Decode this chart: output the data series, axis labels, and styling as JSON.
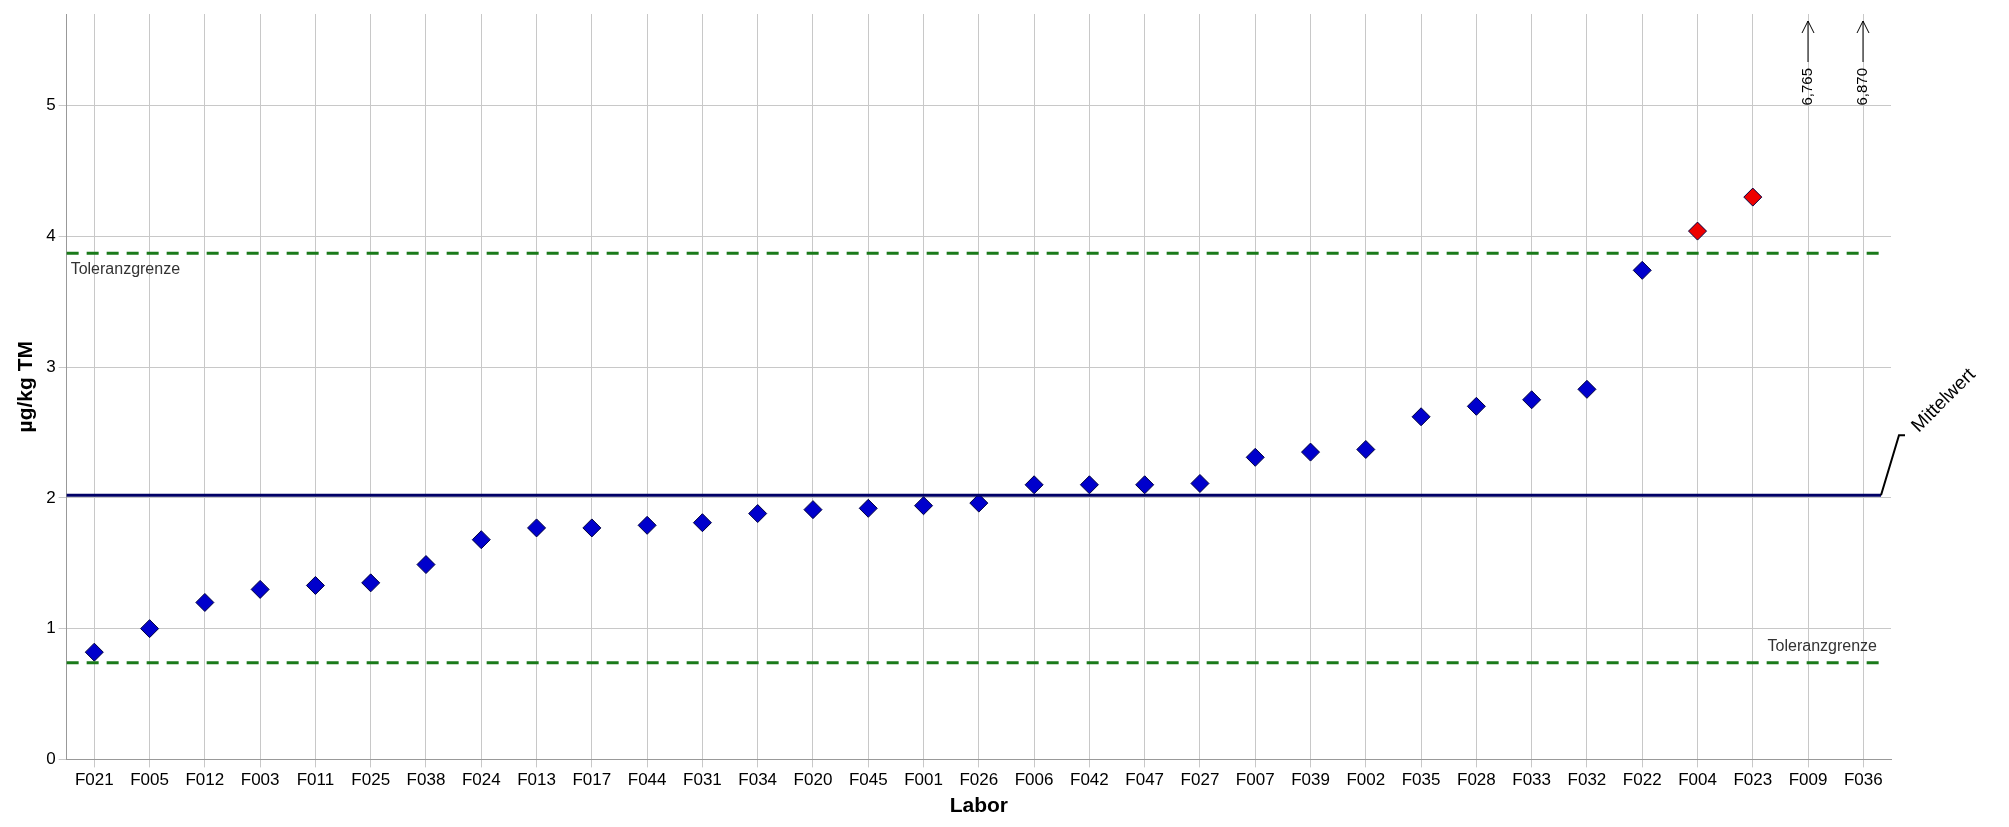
{
  "chart_data": {
    "type": "scatter",
    "xlabel": "Labor",
    "ylabel": "µg/kg TM",
    "categories": [
      "F021",
      "F005",
      "F012",
      "F003",
      "F011",
      "F025",
      "F038",
      "F024",
      "F013",
      "F017",
      "F044",
      "F031",
      "F034",
      "F020",
      "F045",
      "F001",
      "F026",
      "F006",
      "F042",
      "F047",
      "F027",
      "F007",
      "F039",
      "F002",
      "F035",
      "F028",
      "F033",
      "F032",
      "F022",
      "F004",
      "F023",
      "F009",
      "F036"
    ],
    "series": [
      {
        "colors": [
          "#0000cc",
          "#0000cc",
          "#0000cc",
          "#0000cc",
          "#0000cc",
          "#0000cc",
          "#0000cc",
          "#0000cc",
          "#0000cc",
          "#0000cc",
          "#0000cc",
          "#0000cc",
          "#0000cc",
          "#0000cc",
          "#0000cc",
          "#0000cc",
          "#0000cc",
          "#0000cc",
          "#0000cc",
          "#0000cc",
          "#0000cc",
          "#0000cc",
          "#0000cc",
          "#0000cc",
          "#0000cc",
          "#0000cc",
          "#0000cc",
          "#0000cc",
          "#0000cc",
          "#ee0000",
          "#ee0000",
          "#0000cc",
          "#0000cc"
        ],
        "values": [
          0.82,
          1.0,
          1.2,
          1.3,
          1.33,
          1.35,
          1.49,
          1.68,
          1.77,
          1.77,
          1.79,
          1.81,
          1.88,
          1.91,
          1.92,
          1.94,
          1.96,
          2.1,
          2.1,
          2.1,
          2.11,
          2.31,
          2.35,
          2.37,
          2.62,
          2.7,
          2.75,
          2.83,
          3.74,
          4.04,
          4.3,
          null,
          null
        ]
      }
    ],
    "ylim": [
      0,
      5.7
    ],
    "yticks": [
      0,
      1,
      2,
      3,
      4,
      5
    ],
    "grid": true,
    "legend": false,
    "marker": "diamond",
    "ref_lines": [
      {
        "axis": "y",
        "value": 3.87,
        "label": "Toleranzgrenze",
        "color": "#1a7a1a",
        "line_style": "dashed"
      },
      {
        "axis": "y",
        "value": 0.74,
        "label": "Toleranzgrenze",
        "color": "#1a7a1a",
        "line_style": "dashed"
      },
      {
        "axis": "y",
        "value": 2.02,
        "label": "Mittelwert",
        "color": "#000066",
        "line_style": "solid"
      }
    ],
    "annotations": [
      "6,765",
      "6,870"
    ]
  }
}
